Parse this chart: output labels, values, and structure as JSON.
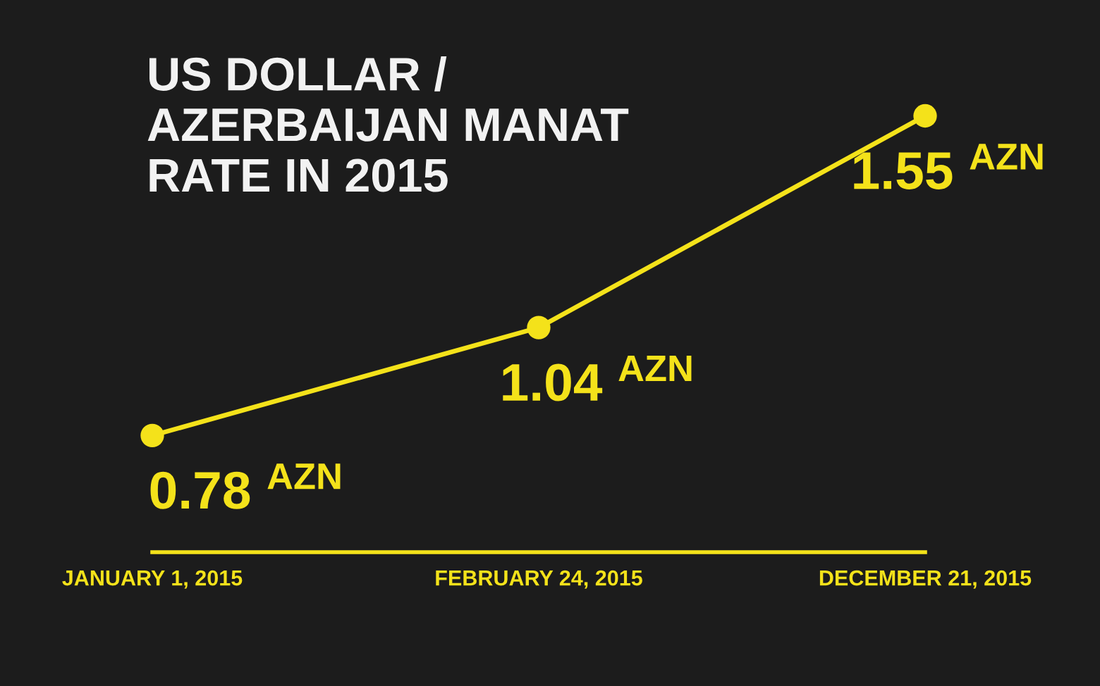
{
  "chart_data": {
    "type": "line",
    "title": "US DOLLAR /\nAZERBAIJAN MANAT\nRATE IN 2015",
    "categories": [
      "JANUARY 1, 2015",
      "FEBRUARY 24, 2015",
      "DECEMBER 21, 2015"
    ],
    "series": [
      {
        "color": "#f4e21a",
        "values": [
          0.78,
          1.04,
          1.55
        ],
        "value_labels": [
          "0.78 $^{AZN}$",
          "1.04 $^{AZN}$",
          "1.55 $^{AZN}$"
        ]
      }
    ],
    "marker": "circle",
    "line_style": "solid",
    "tick_labels": "x"
  }
}
